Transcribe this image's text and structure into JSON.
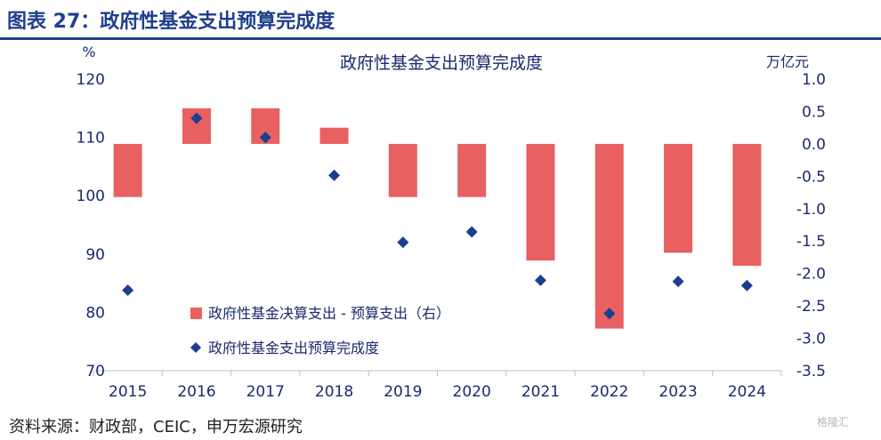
{
  "figure_title": "图表 27：政府性基金支出预算完成度",
  "source_note": "资料来源：财政部，CEIC，申万宏源研究",
  "watermark": "格隆汇",
  "colors": {
    "bar": "#e8605f",
    "marker": "#1a3f8f",
    "title_blue": "#1f3f8c",
    "axis_text": "#1a2a6c"
  },
  "chart_data": {
    "type": "bar",
    "title": "政府性基金支出预算完成度",
    "categories": [
      "2015",
      "2016",
      "2017",
      "2018",
      "2019",
      "2020",
      "2021",
      "2022",
      "2023",
      "2024"
    ],
    "left_axis": {
      "unit_label": "%",
      "ylim": [
        70,
        120
      ],
      "ticks": [
        "120",
        "110",
        "100",
        "90",
        "80",
        "70"
      ],
      "tick_values": [
        120,
        110,
        100,
        90,
        80,
        70
      ]
    },
    "right_axis": {
      "unit_label": "万亿元",
      "ylim": [
        -3.5,
        1.0
      ],
      "ticks": [
        "1.0",
        "0.5",
        "0.0",
        "-0.5",
        "-1.0",
        "-1.5",
        "-2.0",
        "-2.5",
        "-3.0",
        "-3.5"
      ],
      "tick_values": [
        1.0,
        0.5,
        0.0,
        -0.5,
        -1.0,
        -1.5,
        -2.0,
        -2.5,
        -3.0,
        -3.5
      ]
    },
    "series": [
      {
        "name": "政府性基金决算支出 - 预算支出（右）",
        "type": "bar",
        "axis": "right",
        "values": [
          -0.82,
          0.55,
          0.55,
          0.25,
          -0.82,
          -0.82,
          -1.8,
          -2.85,
          -1.68,
          -1.88
        ]
      },
      {
        "name": "政府性基金支出预算完成度",
        "type": "scatter",
        "axis": "left",
        "marker": "diamond",
        "values": [
          83.8,
          113.3,
          110.0,
          103.5,
          92.0,
          93.8,
          85.5,
          79.8,
          85.3,
          84.6
        ]
      }
    ],
    "legend_position": "bottom-left",
    "grid": false
  }
}
